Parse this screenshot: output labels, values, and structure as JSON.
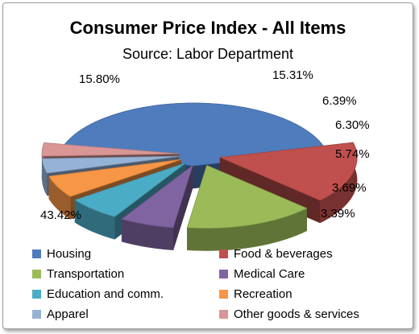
{
  "chart_data": {
    "type": "pie",
    "title": "Consumer Price Index - All Items",
    "subtitle": "Source: Labor Department",
    "legend_position": "bottom",
    "slices": [
      {
        "label": "Housing",
        "value": 43.42,
        "data_label": "43.42%",
        "color": "#4f7cbd"
      },
      {
        "label": "Food & beverages",
        "value": 15.8,
        "data_label": "15.80%",
        "color": "#c0504d"
      },
      {
        "label": "Transportation",
        "value": 15.31,
        "data_label": "15.31%",
        "color": "#9bbb59"
      },
      {
        "label": "Medical Care",
        "value": 6.39,
        "data_label": "6.39%",
        "color": "#8064a2"
      },
      {
        "label": "Education and comm.",
        "value": 6.3,
        "data_label": "6.30%",
        "color": "#4bacc6"
      },
      {
        "label": "Recreation",
        "value": 5.74,
        "data_label": "5.74%",
        "color": "#f79646"
      },
      {
        "label": "Apparel",
        "value": 3.69,
        "data_label": "3.69%",
        "color": "#95b3d7"
      },
      {
        "label": "Other goods & services",
        "value": 3.39,
        "data_label": "3.39%",
        "color": "#d99694"
      }
    ]
  }
}
